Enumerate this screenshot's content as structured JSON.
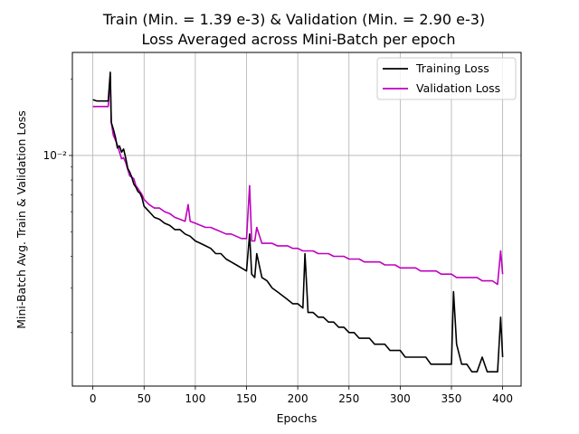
{
  "chart_data": {
    "type": "line",
    "title": "Train (Min. =  1.39 e-3) & Validation (Min. =  2.90 e-3)",
    "subtitle": "Loss Averaged across Mini-Batch per epoch",
    "xlabel": "Epochs",
    "ylabel": "Mini-Batch Avg. Train & Validation Loss",
    "xlim": [
      -20,
      418
    ],
    "ylim": [
      0.00123,
      0.0255
    ],
    "yscale": "log",
    "xticks": [
      0,
      50,
      100,
      150,
      200,
      250,
      300,
      350,
      400
    ],
    "yticks": [
      {
        "value": 0.01,
        "label": "10⁻²"
      }
    ],
    "grid": true,
    "legend_position": "top-right",
    "series": [
      {
        "name": "Training Loss",
        "color": "#000000",
        "x": [
          0,
          4,
          8,
          12,
          15,
          17,
          18,
          20,
          22,
          24,
          26,
          28,
          30,
          32,
          34,
          36,
          38,
          40,
          42,
          44,
          46,
          48,
          50,
          55,
          60,
          65,
          70,
          75,
          80,
          85,
          90,
          95,
          100,
          105,
          110,
          115,
          120,
          125,
          130,
          135,
          140,
          145,
          150,
          153,
          155,
          158,
          160,
          165,
          170,
          175,
          180,
          185,
          190,
          195,
          200,
          205,
          207,
          210,
          215,
          220,
          225,
          230,
          235,
          240,
          245,
          250,
          255,
          260,
          265,
          270,
          275,
          280,
          285,
          290,
          295,
          300,
          305,
          310,
          315,
          320,
          325,
          330,
          335,
          340,
          345,
          350,
          352,
          355,
          360,
          365,
          370,
          375,
          380,
          385,
          390,
          395,
          398,
          400
        ],
        "y": [
          0.0166,
          0.0164,
          0.0164,
          0.0164,
          0.0164,
          0.0213,
          0.0135,
          0.0127,
          0.0118,
          0.0107,
          0.0109,
          0.0103,
          0.0106,
          0.0098,
          0.0089,
          0.0086,
          0.0082,
          0.0077,
          0.0075,
          0.0072,
          0.0071,
          0.0068,
          0.0063,
          0.006,
          0.0057,
          0.0056,
          0.0054,
          0.0053,
          0.0051,
          0.0051,
          0.0049,
          0.0048,
          0.0046,
          0.0045,
          0.0044,
          0.0043,
          0.0041,
          0.0041,
          0.0039,
          0.0038,
          0.0037,
          0.0036,
          0.0035,
          0.0049,
          0.0034,
          0.0033,
          0.0041,
          0.0033,
          0.0032,
          0.003,
          0.0029,
          0.0028,
          0.0027,
          0.0026,
          0.0026,
          0.0025,
          0.0041,
          0.0024,
          0.0024,
          0.0023,
          0.0023,
          0.0022,
          0.0022,
          0.0021,
          0.0021,
          0.002,
          0.002,
          0.0019,
          0.0019,
          0.0019,
          0.0018,
          0.0018,
          0.0018,
          0.0017,
          0.0017,
          0.0017,
          0.0016,
          0.0016,
          0.0016,
          0.0016,
          0.0016,
          0.0015,
          0.0015,
          0.0015,
          0.0015,
          0.0015,
          0.0029,
          0.0018,
          0.0015,
          0.0015,
          0.0014,
          0.0014,
          0.0016,
          0.0014,
          0.0014,
          0.0014,
          0.0023,
          0.0016
        ]
      },
      {
        "name": "Validation Loss",
        "color": "#bf00bf",
        "x": [
          0,
          4,
          8,
          12,
          15,
          17,
          18,
          20,
          22,
          24,
          26,
          28,
          30,
          32,
          34,
          36,
          38,
          40,
          42,
          44,
          46,
          48,
          50,
          55,
          60,
          65,
          70,
          75,
          80,
          85,
          90,
          93,
          95,
          100,
          105,
          110,
          115,
          120,
          125,
          130,
          135,
          140,
          145,
          150,
          153,
          155,
          158,
          160,
          165,
          170,
          175,
          180,
          185,
          190,
          195,
          200,
          205,
          210,
          215,
          220,
          225,
          230,
          235,
          240,
          245,
          250,
          255,
          260,
          265,
          270,
          275,
          280,
          285,
          290,
          295,
          300,
          305,
          310,
          315,
          320,
          325,
          330,
          335,
          340,
          345,
          350,
          355,
          360,
          365,
          370,
          375,
          380,
          385,
          390,
          395,
          398,
          400
        ],
        "y": [
          0.0156,
          0.0156,
          0.0156,
          0.0156,
          0.0156,
          0.0205,
          0.0135,
          0.012,
          0.0115,
          0.011,
          0.0103,
          0.0097,
          0.0098,
          0.0094,
          0.0088,
          0.0083,
          0.0082,
          0.0081,
          0.0076,
          0.0074,
          0.0072,
          0.007,
          0.0067,
          0.0064,
          0.0062,
          0.0062,
          0.006,
          0.0059,
          0.0057,
          0.0056,
          0.0055,
          0.0064,
          0.0055,
          0.0054,
          0.0053,
          0.0052,
          0.0052,
          0.0051,
          0.005,
          0.0049,
          0.0049,
          0.0048,
          0.0047,
          0.0047,
          0.0076,
          0.0046,
          0.0046,
          0.0052,
          0.0045,
          0.0045,
          0.0045,
          0.0044,
          0.0044,
          0.0044,
          0.0043,
          0.0043,
          0.0042,
          0.0042,
          0.0042,
          0.0041,
          0.0041,
          0.0041,
          0.004,
          0.004,
          0.004,
          0.0039,
          0.0039,
          0.0039,
          0.0038,
          0.0038,
          0.0038,
          0.0038,
          0.0037,
          0.0037,
          0.0037,
          0.0036,
          0.0036,
          0.0036,
          0.0036,
          0.0035,
          0.0035,
          0.0035,
          0.0035,
          0.0034,
          0.0034,
          0.0034,
          0.0033,
          0.0033,
          0.0033,
          0.0033,
          0.0033,
          0.0032,
          0.0032,
          0.0032,
          0.0031,
          0.0042,
          0.0034
        ]
      }
    ]
  }
}
